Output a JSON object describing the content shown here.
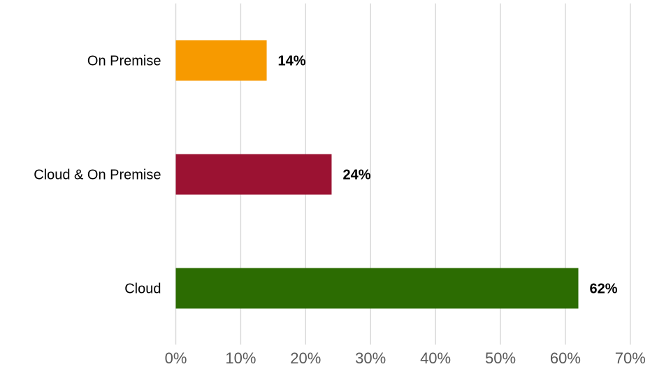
{
  "chart_data": {
    "type": "bar",
    "orientation": "horizontal",
    "categories": [
      "On Premise",
      "Cloud & On Premise",
      "Cloud"
    ],
    "values": [
      14,
      24,
      62
    ],
    "data_labels": [
      "14%",
      "24%",
      "62%"
    ],
    "colors": [
      "#f79a00",
      "#9b1232",
      "#2c6c02"
    ],
    "xlim": [
      0,
      70
    ],
    "xticks": [
      0,
      10,
      20,
      30,
      40,
      50,
      60,
      70
    ],
    "xtick_labels": [
      "0%",
      "10%",
      "20%",
      "30%",
      "40%",
      "50%",
      "60%",
      "70%"
    ],
    "title": "",
    "xlabel": "",
    "ylabel": "",
    "grid": "vertical",
    "legend": "none"
  }
}
